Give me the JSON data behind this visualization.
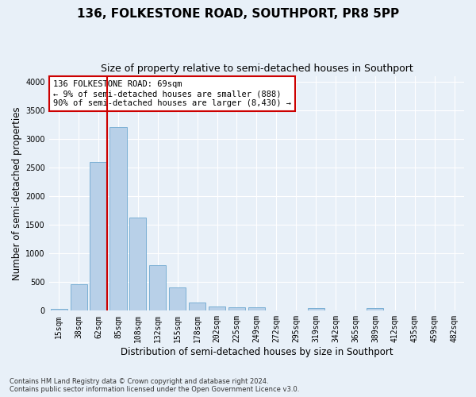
{
  "title": "136, FOLKESTONE ROAD, SOUTHPORT, PR8 5PP",
  "subtitle": "Size of property relative to semi-detached houses in Southport",
  "xlabel": "Distribution of semi-detached houses by size in Southport",
  "ylabel": "Number of semi-detached properties",
  "categories": [
    "15sqm",
    "38sqm",
    "62sqm",
    "85sqm",
    "108sqm",
    "132sqm",
    "155sqm",
    "178sqm",
    "202sqm",
    "225sqm",
    "249sqm",
    "272sqm",
    "295sqm",
    "319sqm",
    "342sqm",
    "365sqm",
    "389sqm",
    "412sqm",
    "435sqm",
    "459sqm",
    "482sqm"
  ],
  "values": [
    30,
    460,
    2600,
    3200,
    1630,
    800,
    410,
    150,
    75,
    65,
    65,
    0,
    0,
    50,
    0,
    0,
    40,
    0,
    0,
    0,
    0
  ],
  "bar_color": "#b8d0e8",
  "bar_edge_color": "#7aafd4",
  "vline_color": "#cc0000",
  "annotation_text": "136 FOLKESTONE ROAD: 69sqm\n← 9% of semi-detached houses are smaller (888)\n90% of semi-detached houses are larger (8,430) →",
  "annotation_box_color": "#ffffff",
  "annotation_box_edge": "#cc0000",
  "ylim": [
    0,
    4100
  ],
  "yticks": [
    0,
    500,
    1000,
    1500,
    2000,
    2500,
    3000,
    3500,
    4000
  ],
  "footnote1": "Contains HM Land Registry data © Crown copyright and database right 2024.",
  "footnote2": "Contains public sector information licensed under the Open Government Licence v3.0.",
  "bg_color": "#e8f0f8",
  "plot_bg_color": "#e8f0f8",
  "grid_color": "#ffffff",
  "title_fontsize": 11,
  "subtitle_fontsize": 9,
  "axis_label_fontsize": 8.5,
  "tick_fontsize": 7,
  "footnote_fontsize": 6
}
